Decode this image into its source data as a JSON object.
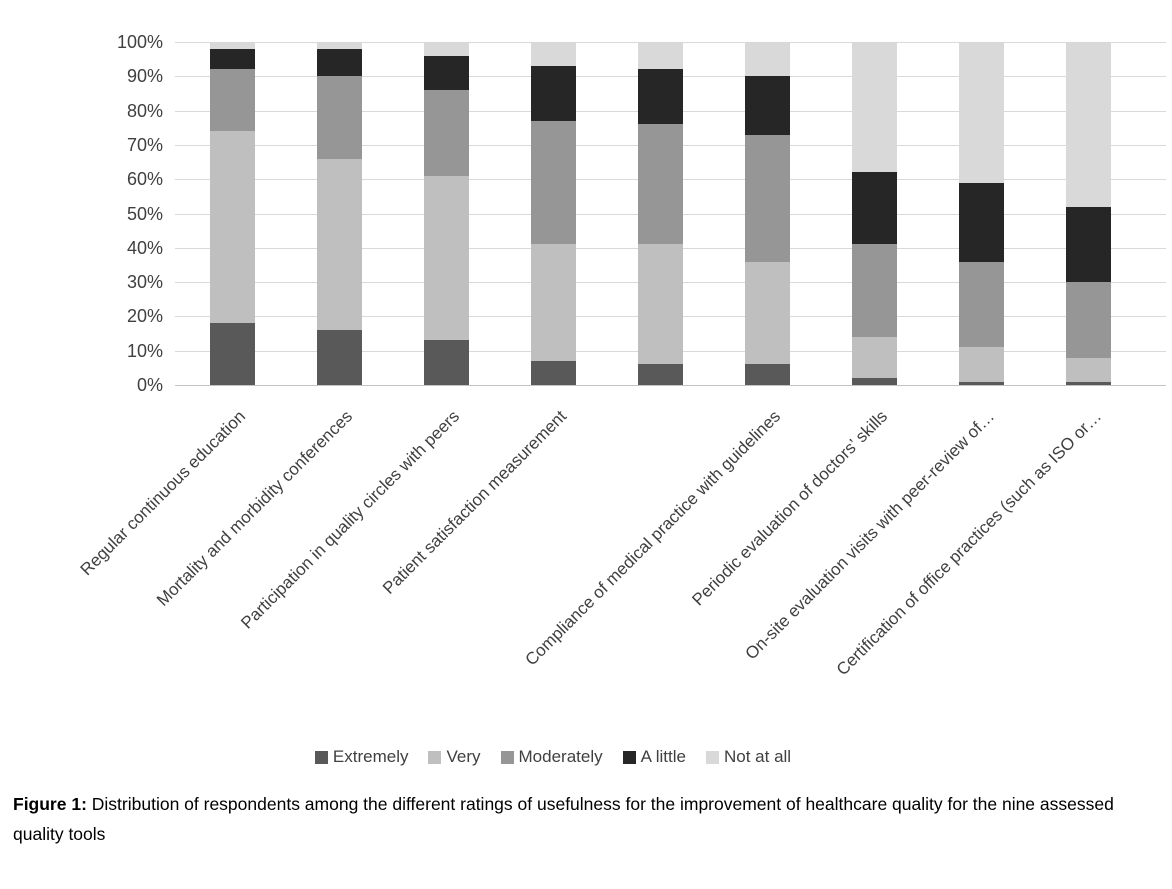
{
  "figure": {
    "caption_label": "Figure 1:",
    "caption_text": " Distribution of respondents among the different ratings of usefulness for the improvement of healthcare quality for the nine assessed quality tools"
  },
  "chart_data": {
    "type": "bar",
    "subtype": "stacked-100-percent-column",
    "title": "",
    "xlabel": "",
    "ylabel": "",
    "ylim": [
      0,
      100
    ],
    "grid": true,
    "legend_position": "bottom",
    "yticks": [
      "0%",
      "10%",
      "20%",
      "30%",
      "40%",
      "50%",
      "60%",
      "70%",
      "80%",
      "90%",
      "100%"
    ],
    "categories": [
      "Regular continuous education",
      "Mortality and morbidity conferences",
      "Participation in quality circles with peers",
      "Patient satisfaction measurement",
      "",
      "Compliance of medical practice with guidelines",
      "Periodic evaluation of doctors’ skills",
      "On-site evaluation visits with peer-review of…",
      "Certification of office practices (such as ISO or…"
    ],
    "series": [
      {
        "name": "Extremely",
        "color": "#595959",
        "values": [
          18,
          16,
          13,
          7,
          6,
          6,
          2,
          1,
          1
        ]
      },
      {
        "name": "Very",
        "color": "#bfbfbf",
        "values": [
          56,
          50,
          48,
          34,
          35,
          30,
          12,
          10,
          7
        ]
      },
      {
        "name": "Moderately",
        "color": "#969696",
        "values": [
          18,
          24,
          25,
          36,
          35,
          37,
          27,
          25,
          22
        ]
      },
      {
        "name": "A little",
        "color": "#262626",
        "values": [
          6,
          8,
          10,
          16,
          16,
          17,
          21,
          23,
          22
        ]
      },
      {
        "name": "Not at all",
        "color": "#d9d9d9",
        "values": [
          2,
          2,
          4,
          7,
          8,
          10,
          38,
          41,
          48
        ]
      }
    ]
  }
}
